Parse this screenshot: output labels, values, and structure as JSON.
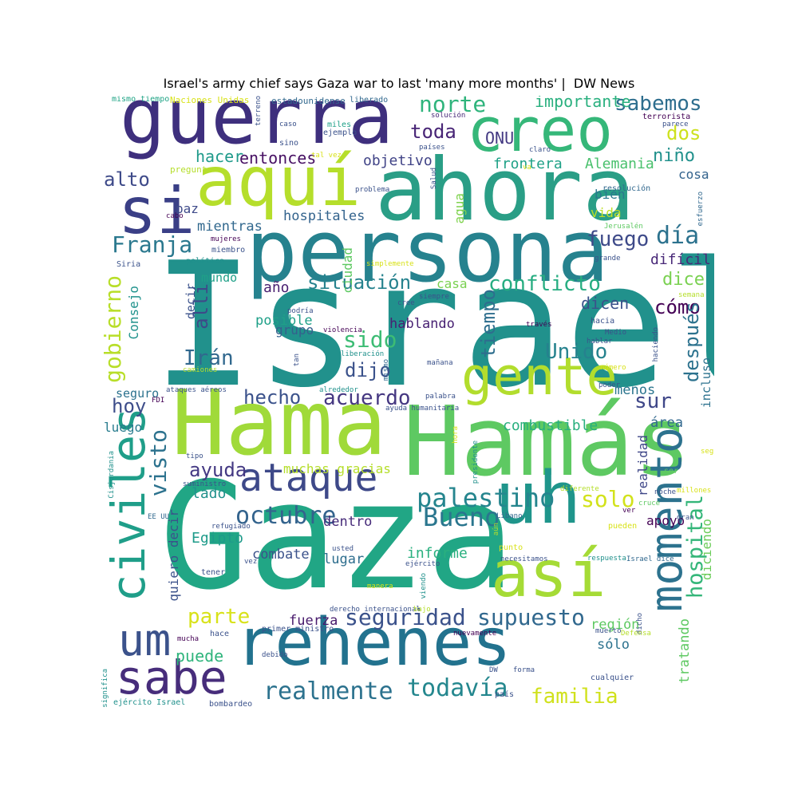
{
  "title": "Israel's army chief says Gaza war to last 'many more months' |  DW News",
  "palette": {
    "dark_purple": "#440154",
    "indigo": "#3b2c7b",
    "blue": "#31688e",
    "teal": "#21918c",
    "green": "#35b779",
    "lime": "#90d743",
    "yellow": "#e0e22a"
  },
  "words": [
    {
      "text": "Israel",
      "color": "#21918c"
    },
    {
      "text": "Gaza",
      "color": "#21a685"
    },
    {
      "text": "Hamás",
      "color": "#5ec962"
    },
    {
      "text": "Hama",
      "color": "#a0da39"
    },
    {
      "text": "persona",
      "color": "#26828e"
    },
    {
      "text": "ahora",
      "color": "#2a9e86"
    },
    {
      "text": "guerra",
      "color": "#3e2f7d"
    },
    {
      "text": "aquí",
      "color": "#b5de2b"
    },
    {
      "text": "creo",
      "color": "#35b779"
    },
    {
      "text": "si",
      "color": "#3a3f86"
    },
    {
      "text": "rehenes",
      "color": "#22728e"
    },
    {
      "text": "uh",
      "color": "#1f958b"
    },
    {
      "text": "así",
      "color": "#a5db36"
    },
    {
      "text": "gente",
      "color": "#b2dd2d"
    },
    {
      "text": "ataque",
      "color": "#3e4989"
    },
    {
      "text": "sabe",
      "color": "#472d7b"
    },
    {
      "text": "um",
      "color": "#3b528b"
    },
    {
      "text": "civiles",
      "color": "#1f9e89"
    },
    {
      "text": "momento",
      "color": "#2c728e"
    },
    {
      "text": "palestino",
      "color": "#25858e"
    },
    {
      "text": "octubre",
      "color": "#33638d"
    },
    {
      "text": "Bueno",
      "color": "#2a768e"
    },
    {
      "text": "solo",
      "color": "#d2e21b"
    },
    {
      "text": "seguridad",
      "color": "#3b528b"
    },
    {
      "text": "supuesto",
      "color": "#31688e"
    },
    {
      "text": "parte",
      "color": "#d8e219"
    },
    {
      "text": "realmente",
      "color": "#2c728e"
    },
    {
      "text": "todavía",
      "color": "#24878e"
    },
    {
      "text": "familia",
      "color": "#d0e11c"
    },
    {
      "text": "hospital",
      "color": "#34b679"
    },
    {
      "text": "norte",
      "color": "#2fb47c"
    },
    {
      "text": "toda",
      "color": "#482576"
    },
    {
      "text": "sabemos",
      "color": "#2e6e8e"
    },
    {
      "text": "importante",
      "color": "#2ab07f"
    },
    {
      "text": "dos",
      "color": "#cde11d"
    },
    {
      "text": "niño",
      "color": "#21918c"
    },
    {
      "text": "entonces",
      "color": "#471063"
    },
    {
      "text": "objetivo",
      "color": "#414487"
    },
    {
      "text": "hacer",
      "color": "#1f9a8a"
    },
    {
      "text": "ONU",
      "color": "#443a83"
    },
    {
      "text": "frontera",
      "color": "#1fa187"
    },
    {
      "text": "Alemania",
      "color": "#4ac16d"
    },
    {
      "text": "alto",
      "color": "#3e4a89"
    },
    {
      "text": "cosa",
      "color": "#33638d"
    },
    {
      "text": "Franja",
      "color": "#2a788e"
    },
    {
      "text": "fuego",
      "color": "#3e4a89"
    },
    {
      "text": "día",
      "color": "#2c728e"
    },
    {
      "text": "conflicto",
      "color": "#27ad81"
    },
    {
      "text": "situación",
      "color": "#26828e"
    },
    {
      "text": "dice",
      "color": "#7ad151"
    },
    {
      "text": "año",
      "color": "#481f70"
    },
    {
      "text": "cómo",
      "color": "#440154"
    },
    {
      "text": "dicen",
      "color": "#3b528b"
    },
    {
      "text": "hospitales",
      "color": "#33638d"
    },
    {
      "text": "mientras",
      "color": "#31688e"
    },
    {
      "text": "ciudad",
      "color": "#5ec962"
    },
    {
      "text": "agua",
      "color": "#7fd34e"
    },
    {
      "text": "bien",
      "color": "#2a788e"
    },
    {
      "text": "vida",
      "color": "#bddf26"
    },
    {
      "text": "difícil",
      "color": "#482878"
    },
    {
      "text": "gobierno",
      "color": "#b8de29"
    },
    {
      "text": "allí",
      "color": "#3e4989"
    },
    {
      "text": "Irán",
      "color": "#31688e"
    },
    {
      "text": "sido",
      "color": "#3dbc74"
    },
    {
      "text": "dijo",
      "color": "#3b528b"
    },
    {
      "text": "tiempo",
      "color": "#2e6e8e"
    },
    {
      "text": "Unido",
      "color": "#26828e"
    },
    {
      "text": "después",
      "color": "#2c728e"
    },
    {
      "text": "hablando",
      "color": "#482173"
    },
    {
      "text": "posible",
      "color": "#1fa088"
    },
    {
      "text": "grupo",
      "color": "#35608d"
    },
    {
      "text": "hecho",
      "color": "#3b528b"
    },
    {
      "text": "acuerdo",
      "color": "#453781"
    },
    {
      "text": "sur",
      "color": "#3f4788"
    },
    {
      "text": "hoy",
      "color": "#3d4d8a"
    },
    {
      "text": "menos",
      "color": "#2b758e"
    },
    {
      "text": "combustible",
      "color": "#29af7f"
    },
    {
      "text": "área",
      "color": "#31688e"
    },
    {
      "text": "incluso",
      "color": "#2c728e"
    },
    {
      "text": "visto",
      "color": "#2c728e"
    },
    {
      "text": "ayuda",
      "color": "#443983"
    },
    {
      "text": "lado",
      "color": "#21918c"
    },
    {
      "text": "muchas gracias",
      "color": "#b5de2b"
    },
    {
      "text": "dentro",
      "color": "#472c7a"
    },
    {
      "text": "Egipto",
      "color": "#1e9b8a"
    },
    {
      "text": "combate",
      "color": "#3b528b"
    },
    {
      "text": "informe",
      "color": "#2ab07f"
    },
    {
      "text": "lugar",
      "color": "#2e6e8e"
    },
    {
      "text": "apoyo",
      "color": "#440154"
    },
    {
      "text": "realidad",
      "color": "#3f4788"
    },
    {
      "text": "diciendo",
      "color": "#6ccd5a"
    },
    {
      "text": "quiero decir",
      "color": "#3b528b"
    },
    {
      "text": "fuerza",
      "color": "#481a6c"
    },
    {
      "text": "región",
      "color": "#5ec962"
    },
    {
      "text": "sólo",
      "color": "#2c728e"
    },
    {
      "text": "tratando",
      "color": "#5ec962"
    },
    {
      "text": "puede",
      "color": "#2fb47c"
    },
    {
      "text": "Consejo",
      "color": "#20928c"
    },
    {
      "text": "seguro",
      "color": "#2c728e"
    },
    {
      "text": "luego",
      "color": "#287c8e"
    },
    {
      "text": "decir",
      "color": "#3b528b"
    },
    {
      "text": "mundo",
      "color": "#1fa088"
    },
    {
      "text": "paz",
      "color": "#3e4a89"
    },
    {
      "text": "casa",
      "color": "#7ad151"
    },
    {
      "text": "mismo tiempo",
      "color": "#20a486"
    },
    {
      "text": "Naciones Unidas",
      "color": "#d8e219"
    },
    {
      "text": "estadounidense",
      "color": "#31688e"
    },
    {
      "text": "liberado",
      "color": "#31688e"
    },
    {
      "text": "solución",
      "color": "#482878"
    },
    {
      "text": "terreno",
      "color": "#3b528b"
    },
    {
      "text": "caso",
      "color": "#3b528b"
    },
    {
      "text": "miles",
      "color": "#1fa088"
    },
    {
      "text": "sino",
      "color": "#3b528b"
    },
    {
      "text": "ejemplo",
      "color": "#3b528b"
    },
    {
      "text": "tal vez",
      "color": "#d8e219"
    },
    {
      "text": "países",
      "color": "#3b528b"
    },
    {
      "text": "terrorista",
      "color": "#440154"
    },
    {
      "text": "parece",
      "color": "#3b528b"
    },
    {
      "text": "claro",
      "color": "#3b528b"
    },
    {
      "text": "pregunta",
      "color": "#b5de2b"
    },
    {
      "text": "va",
      "color": "#d8e219"
    },
    {
      "text": "problema",
      "color": "#3b528b"
    },
    {
      "text": "Salud",
      "color": "#3b528b"
    },
    {
      "text": "resolución",
      "color": "#31688e"
    },
    {
      "text": "esfuerzo",
      "color": "#31688e"
    },
    {
      "text": "cabo",
      "color": "#440154"
    },
    {
      "text": "Jerusalén",
      "color": "#5ec962"
    },
    {
      "text": "mujeres",
      "color": "#440154"
    },
    {
      "text": "miembro",
      "color": "#3b528b"
    },
    {
      "text": "Siria",
      "color": "#3b528b"
    },
    {
      "text": "política",
      "color": "#21918c"
    },
    {
      "text": "simplemente",
      "color": "#d8e219"
    },
    {
      "text": "grande",
      "color": "#3b528b"
    },
    {
      "text": "podría",
      "color": "#3b528b"
    },
    {
      "text": "violencia",
      "color": "#440154"
    },
    {
      "text": "siempre",
      "color": "#3b528b"
    },
    {
      "text": "cree",
      "color": "#3b528b"
    },
    {
      "text": "semana",
      "color": "#b5de2b"
    },
    {
      "text": "hacia",
      "color": "#3b528b"
    },
    {
      "text": "Medio",
      "color": "#3b528b"
    },
    {
      "text": "través",
      "color": "#440154"
    },
    {
      "text": "hablar",
      "color": "#3b528b"
    },
    {
      "text": "haciendo",
      "color": "#3b528b"
    },
    {
      "text": "tan",
      "color": "#3b528b"
    },
    {
      "text": "liberación",
      "color": "#21918c"
    },
    {
      "text": "mañana",
      "color": "#3b528b"
    },
    {
      "text": "mismo",
      "color": "#31688e"
    },
    {
      "text": "camiones",
      "color": "#b5de2b"
    },
    {
      "text": "número",
      "color": "#d8e219"
    },
    {
      "text": "ataques aéreos",
      "color": "#3b528b"
    },
    {
      "text": "alrededor",
      "color": "#21918c"
    },
    {
      "text": "poder",
      "color": "#3b528b"
    },
    {
      "text": "FDI",
      "color": "#440154"
    },
    {
      "text": "palabra",
      "color": "#3b528b"
    },
    {
      "text": "ayuda humanitaria",
      "color": "#3b528b"
    },
    {
      "text": "hora",
      "color": "#d8e219"
    },
    {
      "text": "Cisjordania",
      "color": "#21918c"
    },
    {
      "text": "tipo",
      "color": "#3b528b"
    },
    {
      "text": "presidente",
      "color": "#21918c"
    },
    {
      "text": "según",
      "color": "#d8e219"
    },
    {
      "text": "suministro",
      "color": "#3b528b"
    },
    {
      "text": "diferente",
      "color": "#b5de2b"
    },
    {
      "text": "ser",
      "color": "#5ec962"
    },
    {
      "text": "millones",
      "color": "#d8e219"
    },
    {
      "text": "noche",
      "color": "#3b528b"
    },
    {
      "text": "EE UU",
      "color": "#31688e"
    },
    {
      "text": "cruce",
      "color": "#5ec962"
    },
    {
      "text": "Líbano",
      "color": "#31688e"
    },
    {
      "text": "ver",
      "color": "#440154"
    },
    {
      "text": "gran",
      "color": "#3b528b"
    },
    {
      "text": "refugiado",
      "color": "#3b528b"
    },
    {
      "text": "aún",
      "color": "#b5de2b"
    },
    {
      "text": "pueden",
      "color": "#d8e219"
    },
    {
      "text": "usted",
      "color": "#3b528b"
    },
    {
      "text": "punto",
      "color": "#d8e219"
    },
    {
      "text": "respuesta",
      "color": "#21918c"
    },
    {
      "text": "vez",
      "color": "#3b528b"
    },
    {
      "text": "ejército",
      "color": "#3b528b"
    },
    {
      "text": "necesitamos",
      "color": "#3b528b"
    },
    {
      "text": "Israel dice",
      "color": "#31688e"
    },
    {
      "text": "tener",
      "color": "#3b528b"
    },
    {
      "text": "manera",
      "color": "#d8e219"
    },
    {
      "text": "viendo",
      "color": "#21918c"
    },
    {
      "text": "derecho internacional",
      "color": "#3b528b"
    },
    {
      "text": "bajo",
      "color": "#b5de2b"
    },
    {
      "text": "dicho",
      "color": "#3b528b"
    },
    {
      "text": "hace",
      "color": "#3b528b"
    },
    {
      "text": "primer ministro",
      "color": "#3b528b"
    },
    {
      "text": "nuevamente",
      "color": "#440154"
    },
    {
      "text": "muerto",
      "color": "#3b528b"
    },
    {
      "text": "Defensa",
      "color": "#b5de2b"
    },
    {
      "text": "significa",
      "color": "#21918c"
    },
    {
      "text": "mucha",
      "color": "#440154"
    },
    {
      "text": "debido",
      "color": "#3b528b"
    },
    {
      "text": "DW",
      "color": "#3b528b"
    },
    {
      "text": "forma",
      "color": "#3b528b"
    },
    {
      "text": "cualquier",
      "color": "#3b528b"
    },
    {
      "text": "país",
      "color": "#3b528b"
    },
    {
      "text": "ejército Israel",
      "color": "#21918c"
    },
    {
      "text": "bombardeo",
      "color": "#3b528b"
    }
  ]
}
